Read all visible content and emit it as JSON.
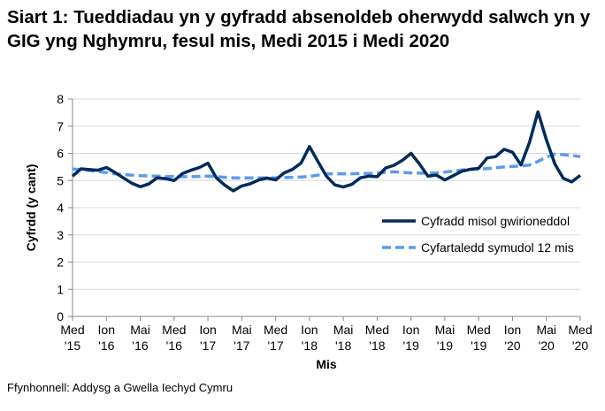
{
  "chart_data": {
    "type": "line",
    "title": "Siart 1: Tueddiadau yn y gyfradd absenoldeb oherwydd salwch yn y GIG yng Nghymru, fesul mis, Medi 2015 i Medi 2020",
    "xlabel": "Mis",
    "ylabel": "Cyfrdd (y cant)",
    "ylim": [
      0,
      8
    ],
    "yticks": [
      "0",
      "1",
      "2",
      "3",
      "4",
      "5",
      "6",
      "7",
      "8"
    ],
    "grid": true,
    "legend": "right",
    "xtick_labels": [
      [
        "Med",
        "'15"
      ],
      [
        "Ion",
        "'16"
      ],
      [
        "Mai",
        "'16"
      ],
      [
        "Med",
        "'16"
      ],
      [
        "Ion",
        "'17"
      ],
      [
        "Mai",
        "'17"
      ],
      [
        "Med",
        "'17"
      ],
      [
        "Ion",
        "'18"
      ],
      [
        "Mai",
        "'18"
      ],
      [
        "Med",
        "'18"
      ],
      [
        "Ion",
        "'19"
      ],
      [
        "Mai",
        "'19"
      ],
      [
        "Med",
        "'19"
      ],
      [
        "Ion",
        "'20"
      ],
      [
        "Mai",
        "'20"
      ],
      [
        "Med",
        "'20"
      ]
    ],
    "x_start": "2015-09",
    "x_end": "2020-09",
    "series": [
      {
        "name": "Cyfradd misol gwirioneddol",
        "color": "#002B5C",
        "style": "solid",
        "values": [
          5.16,
          5.43,
          5.4,
          5.38,
          5.48,
          5.3,
          5.1,
          4.9,
          4.77,
          4.87,
          5.1,
          5.07,
          5.0,
          5.26,
          5.38,
          5.48,
          5.64,
          5.1,
          4.83,
          4.62,
          4.8,
          4.88,
          5.02,
          5.09,
          5.02,
          5.28,
          5.41,
          5.64,
          6.25,
          5.7,
          5.16,
          4.84,
          4.76,
          4.86,
          5.1,
          5.16,
          5.14,
          5.46,
          5.56,
          5.75,
          6.0,
          5.61,
          5.16,
          5.2,
          5.02,
          5.18,
          5.34,
          5.41,
          5.45,
          5.83,
          5.88,
          6.15,
          6.04,
          5.57,
          6.4,
          7.53,
          6.5,
          5.61,
          5.08,
          4.95,
          5.19
        ]
      },
      {
        "name": "Cyfartaledd symudol 12 mis",
        "color": "#5B9BF0",
        "style": "dashed",
        "values": [
          5.42,
          5.4,
          5.37,
          5.33,
          5.29,
          5.25,
          5.22,
          5.2,
          5.18,
          5.17,
          5.16,
          5.15,
          5.15,
          5.14,
          5.14,
          5.15,
          5.16,
          5.14,
          5.12,
          5.1,
          5.1,
          5.1,
          5.1,
          5.1,
          5.1,
          5.11,
          5.12,
          5.13,
          5.15,
          5.2,
          5.24,
          5.25,
          5.25,
          5.25,
          5.26,
          5.26,
          5.27,
          5.3,
          5.32,
          5.3,
          5.28,
          5.27,
          5.27,
          5.28,
          5.31,
          5.35,
          5.39,
          5.41,
          5.42,
          5.44,
          5.47,
          5.5,
          5.52,
          5.54,
          5.57,
          5.7,
          5.86,
          5.97,
          5.95,
          5.92,
          5.88
        ]
      }
    ]
  },
  "footer": "Ffynhonnell: Addysg a Gwella Iechyd Cymru"
}
